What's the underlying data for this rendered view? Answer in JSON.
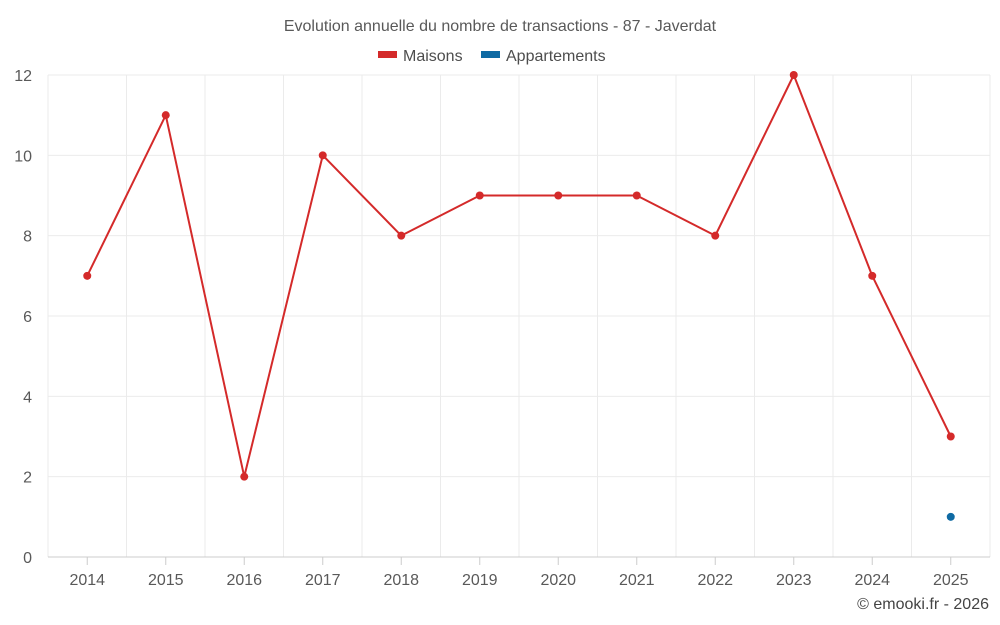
{
  "chart_data": {
    "type": "line",
    "title": "Evolution annuelle du nombre de transactions - 87 - Javerdat",
    "categories": [
      "2014",
      "2015",
      "2016",
      "2017",
      "2018",
      "2019",
      "2020",
      "2021",
      "2022",
      "2023",
      "2024",
      "2025"
    ],
    "series": [
      {
        "name": "Maisons",
        "color": "#d42a2a",
        "values": [
          7,
          11,
          2,
          10,
          8,
          9,
          9,
          9,
          8,
          12,
          7,
          3
        ]
      },
      {
        "name": "Appartements",
        "color": "#0f6aa3",
        "values": [
          null,
          null,
          null,
          null,
          null,
          null,
          null,
          null,
          null,
          null,
          null,
          1
        ]
      }
    ],
    "yticks": [
      0,
      2,
      4,
      6,
      8,
      10,
      12
    ],
    "ylim": [
      0,
      12
    ],
    "grid": true,
    "legend_position": "top-center"
  },
  "credit": "© emooki.fr - 2026"
}
